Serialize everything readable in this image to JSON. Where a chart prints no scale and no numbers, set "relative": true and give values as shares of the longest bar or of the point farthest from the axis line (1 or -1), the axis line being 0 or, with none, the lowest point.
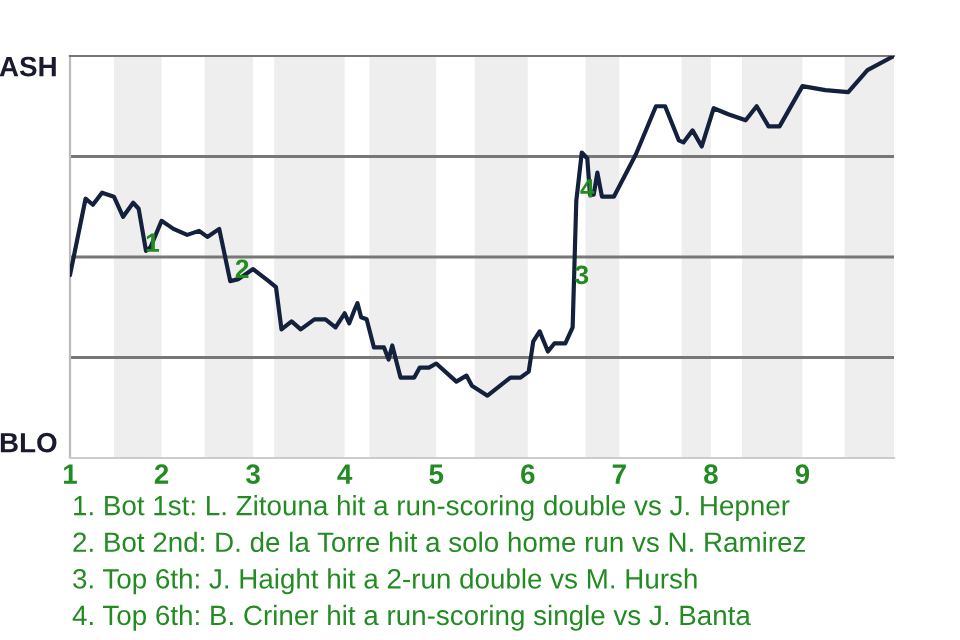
{
  "chart_data": {
    "type": "line",
    "relative": true,
    "x": [
      1.0,
      1.17,
      1.25,
      1.35,
      1.48,
      1.58,
      1.69,
      1.75,
      1.83,
      1.88,
      2.0,
      2.13,
      2.28,
      2.41,
      2.5,
      2.63,
      2.75,
      2.84,
      3.0,
      3.17,
      3.25,
      3.31,
      3.42,
      3.52,
      3.67,
      3.79,
      3.9,
      4.0,
      4.05,
      4.11,
      4.14,
      4.18,
      4.24,
      4.32,
      4.43,
      4.48,
      4.52,
      4.61,
      4.76,
      4.82,
      4.92,
      5.0,
      5.22,
      5.33,
      5.39,
      5.56,
      5.81,
      5.92,
      6.01,
      6.06,
      6.13,
      6.22,
      6.29,
      6.41,
      6.49,
      6.53,
      6.59,
      6.65,
      6.68,
      6.72,
      6.76,
      6.81,
      6.94,
      7.18,
      7.4,
      7.5,
      7.65,
      7.7,
      7.8,
      7.9,
      8.03,
      8.19,
      8.38,
      8.5,
      8.63,
      8.75,
      9.0,
      9.25,
      9.5,
      9.71,
      10.0
    ],
    "series": [
      {
        "color": "#14213d",
        "values": [
          -0.09,
          0.29,
          0.26,
          0.32,
          0.3,
          0.2,
          0.27,
          0.24,
          0.03,
          0.05,
          0.18,
          0.14,
          0.11,
          0.13,
          0.1,
          0.14,
          -0.12,
          -0.11,
          -0.06,
          -0.12,
          -0.15,
          -0.36,
          -0.32,
          -0.36,
          -0.31,
          -0.31,
          -0.35,
          -0.28,
          -0.33,
          -0.26,
          -0.23,
          -0.3,
          -0.31,
          -0.45,
          -0.45,
          -0.51,
          -0.44,
          -0.6,
          -0.6,
          -0.55,
          -0.55,
          -0.53,
          -0.62,
          -0.59,
          -0.64,
          -0.69,
          -0.6,
          -0.6,
          -0.57,
          -0.42,
          -0.37,
          -0.47,
          -0.43,
          -0.43,
          -0.35,
          0.28,
          0.52,
          0.49,
          0.31,
          0.31,
          0.42,
          0.3,
          0.3,
          0.51,
          0.75,
          0.75,
          0.58,
          0.57,
          0.63,
          0.55,
          0.74,
          0.71,
          0.68,
          0.75,
          0.65,
          0.65,
          0.85,
          0.83,
          0.82,
          0.93,
          1.0
        ]
      }
    ],
    "xlim": [
      1,
      10
    ],
    "xticks": [
      1,
      2,
      3,
      4,
      5,
      6,
      7,
      8,
      9
    ],
    "grid": "y",
    "legend": false,
    "marker": "none",
    "line_style": "solid",
    "bands": [
      {
        "axis": "x",
        "from": 1.48,
        "to": 2.0,
        "color": "#eeeeee"
      },
      {
        "axis": "x",
        "from": 2.47,
        "to": 3.0,
        "color": "#eeeeee"
      },
      {
        "axis": "x",
        "from": 3.23,
        "to": 4.0,
        "color": "#eeeeee"
      },
      {
        "axis": "x",
        "from": 4.27,
        "to": 5.0,
        "color": "#eeeeee"
      },
      {
        "axis": "x",
        "from": 5.42,
        "to": 6.0,
        "color": "#eeeeee"
      },
      {
        "axis": "x",
        "from": 6.63,
        "to": 7.0,
        "color": "#eeeeee"
      },
      {
        "axis": "x",
        "from": 7.68,
        "to": 8.0,
        "color": "#eeeeee"
      },
      {
        "axis": "x",
        "from": 8.34,
        "to": 9.0,
        "color": "#eeeeee"
      },
      {
        "axis": "x",
        "from": 9.46,
        "to": 10.0,
        "color": "#eeeeee"
      }
    ],
    "annotations": [
      "ASH",
      "BLO",
      {
        "text": "1",
        "x": 1.9,
        "y": 0.06
      },
      {
        "text": "2",
        "x": 2.88,
        "y": -0.07
      },
      {
        "text": "3",
        "x": 6.59,
        "y": -0.1
      },
      {
        "text": "4",
        "x": 6.65,
        "y": 0.33
      },
      "1. Bot 1st: L. Zitouna hit a run-scoring double vs J. Hepner",
      "2. Bot 2nd: D. de la Torre hit a solo home run vs N. Ramirez",
      "3. Top 6th: J. Haight hit a 2-run double vs M. Hursh",
      "4. Top 6th: B. Criner hit a run-scoring single vs J. Banta"
    ]
  }
}
